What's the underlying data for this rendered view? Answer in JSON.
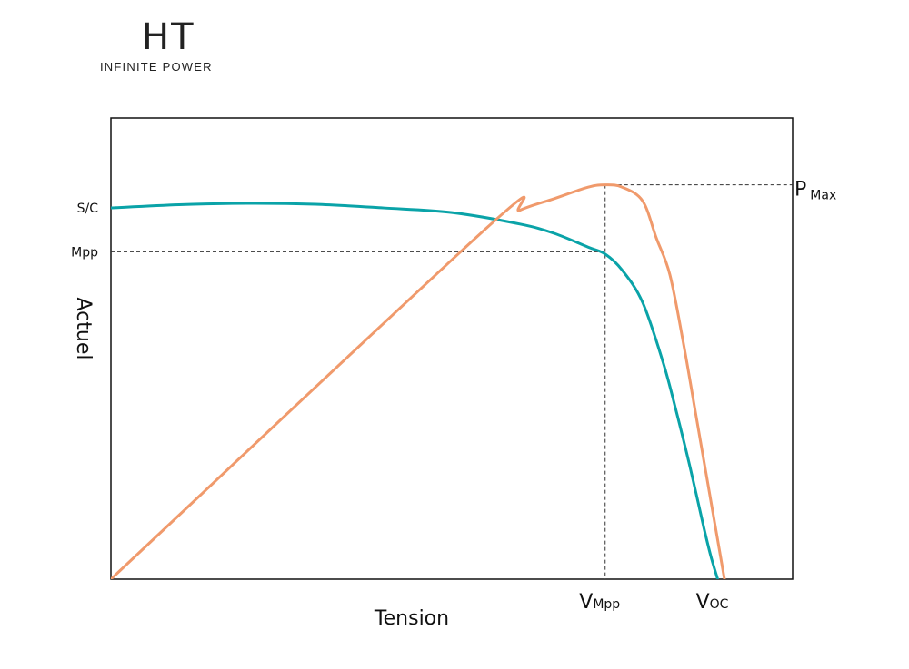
{
  "brand": {
    "logo_text": "HT",
    "tagline": "INFINITE POWER"
  },
  "chart_data": {
    "type": "line",
    "title": "",
    "xlabel": "Tension",
    "ylabel": "Actuel",
    "xlim": [
      0,
      100
    ],
    "ylim": [
      0,
      100
    ],
    "grid": false,
    "legend": "none",
    "y_markers": [
      {
        "label": "S/C",
        "y": 80.5
      },
      {
        "label": "Mpp",
        "y": 71.0
      }
    ],
    "x_markers": [
      {
        "main": "V",
        "sub": "Mpp",
        "x": 72.5
      },
      {
        "main": "V",
        "sub": "OC",
        "x": 89.0
      }
    ],
    "pmax": {
      "main": "P",
      "sub": "Max",
      "x": 72.5,
      "y": 85.5
    },
    "series": [
      {
        "color": "#0aa3a8",
        "points": [
          [
            0,
            80.5
          ],
          [
            10,
            81.2
          ],
          [
            20,
            81.5
          ],
          [
            30,
            81.3
          ],
          [
            40,
            80.5
          ],
          [
            50,
            79.5
          ],
          [
            60,
            77.0
          ],
          [
            65,
            75.0
          ],
          [
            70,
            72.0
          ],
          [
            72.5,
            70.5
          ],
          [
            75,
            67.0
          ],
          [
            78,
            60.0
          ],
          [
            81,
            47.0
          ],
          [
            83,
            36.0
          ],
          [
            85,
            24.0
          ],
          [
            87,
            11.0
          ],
          [
            88,
            5.0
          ],
          [
            89,
            0.0
          ]
        ]
      },
      {
        "color": "#f09a6c",
        "points": [
          [
            0,
            0
          ],
          [
            55,
            76.0
          ],
          [
            60,
            80.0
          ],
          [
            65,
            82.5
          ],
          [
            70,
            85.0
          ],
          [
            72.5,
            85.5
          ],
          [
            75,
            85.0
          ],
          [
            78,
            82.0
          ],
          [
            80,
            74.0
          ],
          [
            82,
            66.0
          ],
          [
            84,
            51.0
          ],
          [
            86,
            34.0
          ],
          [
            88,
            17.0
          ],
          [
            90,
            0.0
          ]
        ]
      }
    ]
  }
}
